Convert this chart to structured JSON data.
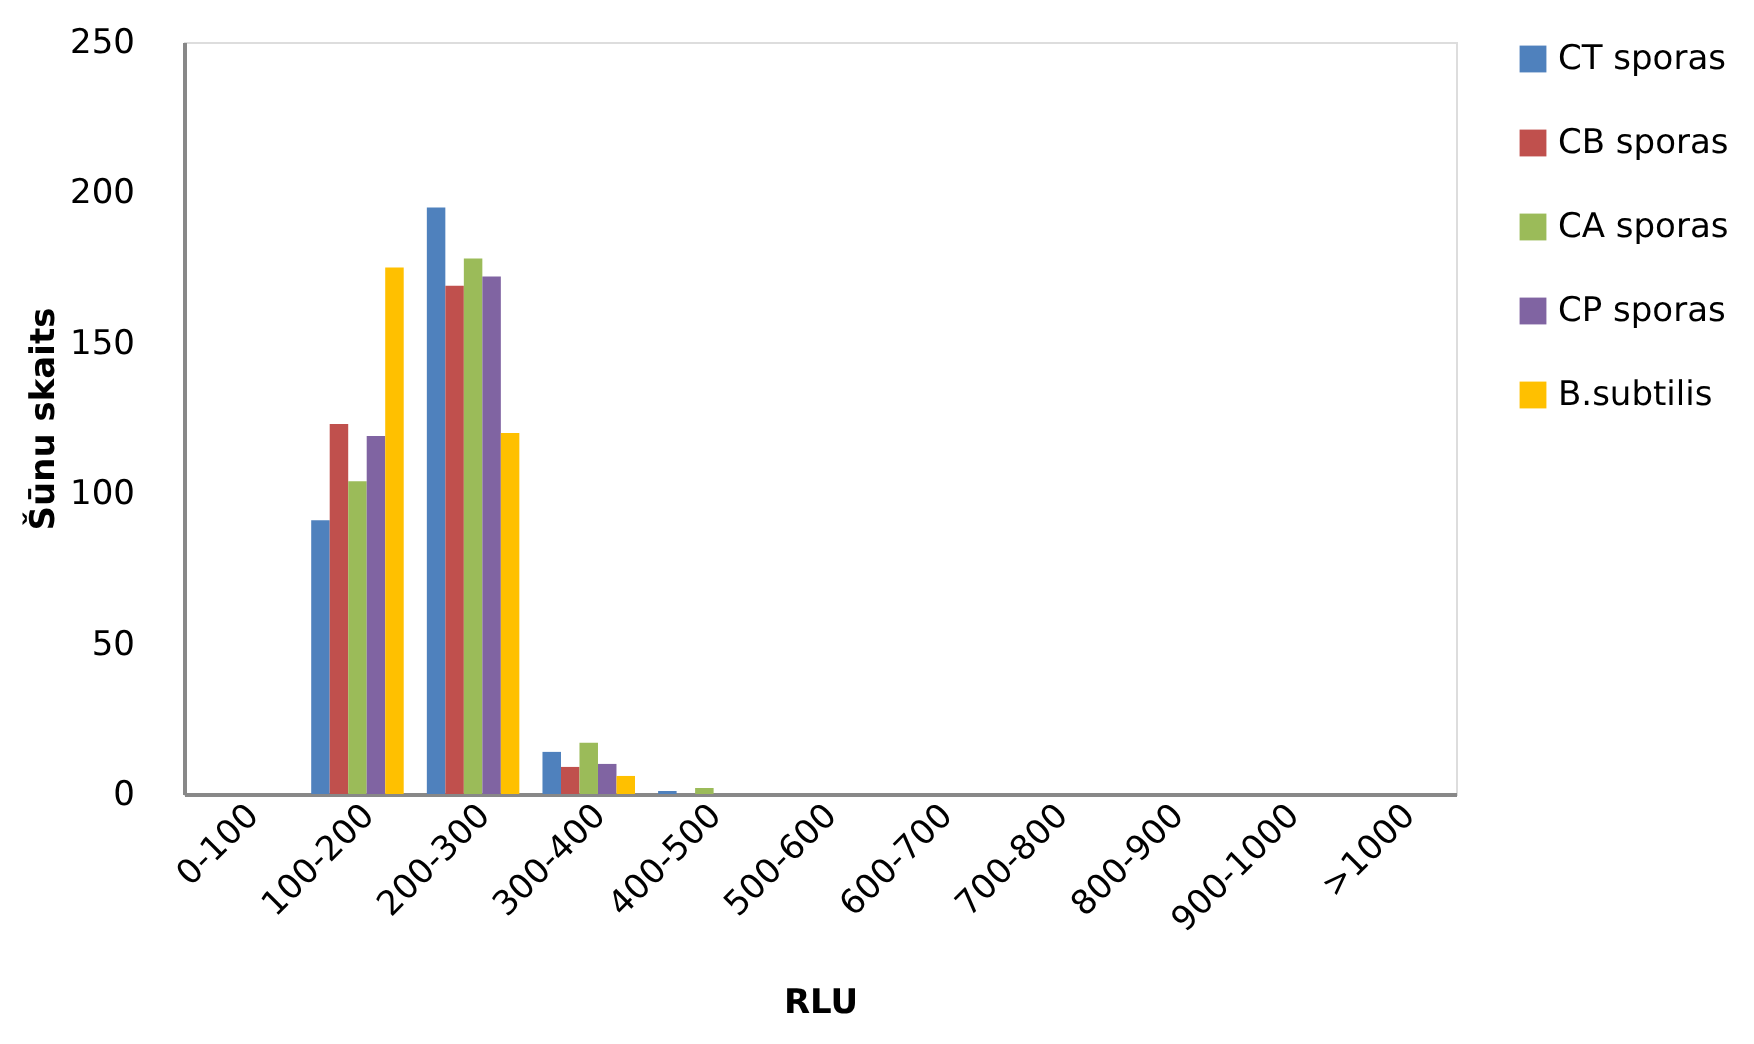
{
  "chart_data": {
    "type": "bar",
    "xlabel": "RLU",
    "ylabel": "Šūnu skaits",
    "categories": [
      "0-100",
      "100-200",
      "200-300",
      "300-400",
      "400-500",
      "500-600",
      "600-700",
      "700-800",
      "800-900",
      "900-1000",
      ">1000"
    ],
    "series": [
      {
        "name": "CT sporas",
        "color": "#4f81bd",
        "values": [
          0,
          91,
          195,
          14,
          1,
          0,
          0,
          0,
          0,
          0,
          0
        ]
      },
      {
        "name": "CB sporas",
        "color": "#c0504d",
        "values": [
          0,
          123,
          169,
          9,
          0,
          0,
          0,
          0,
          0,
          0,
          0
        ]
      },
      {
        "name": "CA sporas",
        "color": "#9bbb59",
        "values": [
          0,
          104,
          178,
          17,
          2,
          0,
          0,
          0,
          0,
          0,
          0
        ]
      },
      {
        "name": "CP sporas",
        "color": "#8064a2",
        "values": [
          0,
          119,
          172,
          10,
          0,
          0,
          0,
          0,
          0,
          0,
          0
        ]
      },
      {
        "name": "B.subtilis",
        "color": "#ffc000",
        "values": [
          0,
          175,
          120,
          6,
          0,
          0,
          0,
          0,
          0,
          0,
          0
        ]
      }
    ],
    "ylim": [
      0,
      250
    ],
    "yticks": [
      0,
      50,
      100,
      150,
      200,
      250
    ],
    "grid": false,
    "legend": "right"
  }
}
